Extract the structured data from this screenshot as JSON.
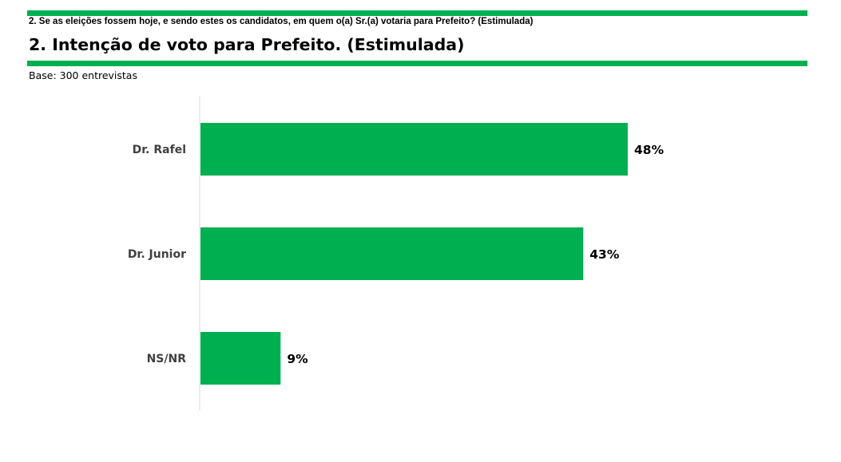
{
  "header": {
    "question": "2. Se as eleições fossem hoje, e sendo estes os candidatos, em quem o(a) Sr.(a) votaria para Prefeito? (Estimulada)",
    "title": "2. Intenção de voto para Prefeito. (Estimulada)",
    "base": "Base: 300 entrevistas"
  },
  "colors": {
    "accent": "#00b050",
    "axis": "#d9d9d9"
  },
  "chart_data": {
    "type": "bar",
    "orientation": "horizontal",
    "categories": [
      "Dr. Rafel",
      "Dr. Junior",
      "NS/NR"
    ],
    "values": [
      48,
      43,
      9
    ],
    "value_labels": [
      "48%",
      "43%",
      "9%"
    ],
    "unit": "%",
    "xlim": [
      0,
      60
    ],
    "grid": false,
    "legend": "none"
  }
}
